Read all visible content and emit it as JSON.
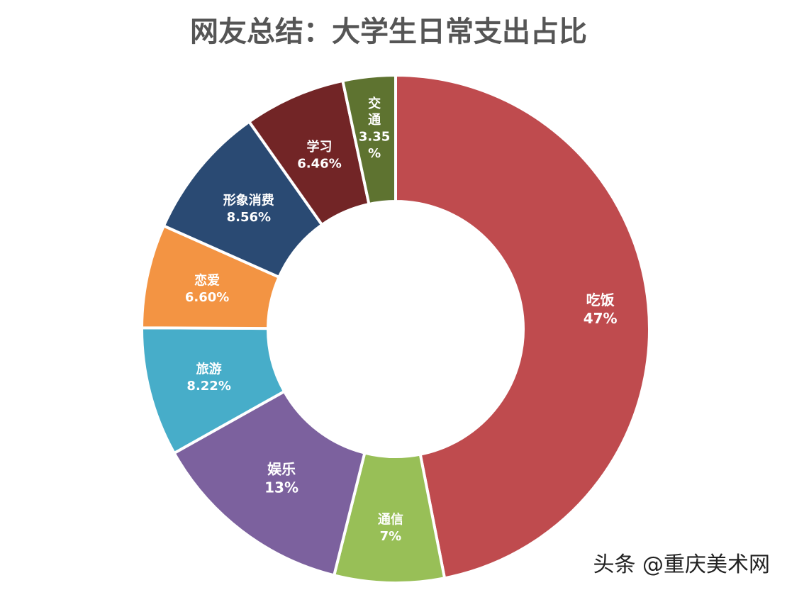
{
  "chart_data": {
    "type": "pie",
    "subtype": "donut",
    "title": "网友总结：大学生日常支出占比",
    "start": "12 o'clock",
    "direction": "clockwise",
    "legend": "none",
    "slices": [
      {
        "name": "吃饭",
        "value": 47,
        "label": "47%",
        "color": "#bf4b4e"
      },
      {
        "name": "通信",
        "value": 7,
        "label": "7%",
        "color": "#98bf57"
      },
      {
        "name": "娱乐",
        "value": 13,
        "label": "13%",
        "color": "#7c619e"
      },
      {
        "name": "旅游",
        "value": 8.22,
        "label": "8.22%",
        "color": "#47adc9"
      },
      {
        "name": "恋爱",
        "value": 6.6,
        "label": "6.60%",
        "color": "#f39443"
      },
      {
        "name": "形象消费",
        "value": 8.56,
        "label": "8.56%",
        "color": "#2a4a73"
      },
      {
        "name": "学习",
        "value": 6.46,
        "label": "6.46%",
        "color": "#722526"
      },
      {
        "name": "交通",
        "value": 3.35,
        "label": "3.35%",
        "color": "#5e7330"
      }
    ]
  },
  "watermark": "头条 @重庆美术网"
}
